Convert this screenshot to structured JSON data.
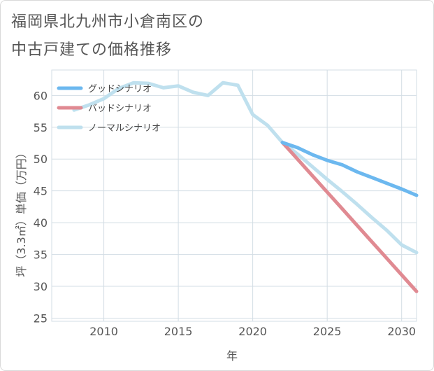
{
  "title_lines": [
    "福岡県北九州市小倉南区の",
    "中古戸建ての価格推移"
  ],
  "chart_data": {
    "type": "line",
    "title": "福岡県北九州市小倉南区の中古戸建ての価格推移",
    "xlabel": "年",
    "ylabel": "坪（3.3㎡）単価（万円）",
    "xlim": [
      2006.5,
      2031
    ],
    "ylim": [
      24.5,
      64
    ],
    "xticks": [
      2010,
      2015,
      2020,
      2025,
      2030
    ],
    "yticks": [
      25,
      30,
      35,
      40,
      45,
      50,
      55,
      60
    ],
    "grid": true,
    "legend_position": "top-left",
    "series": [
      {
        "name": "グッドシナリオ",
        "color": "#6cb8ef",
        "x": [
          2022,
          2023,
          2024,
          2025,
          2026,
          2027,
          2028,
          2029,
          2030,
          2031
        ],
        "y": [
          52.6,
          51.8,
          50.7,
          49.8,
          49.1,
          48.0,
          47.1,
          46.2,
          45.3,
          44.3
        ]
      },
      {
        "name": "バッドシナリオ",
        "color": "#e08a92",
        "x": [
          2022,
          2023,
          2024,
          2025,
          2026,
          2027,
          2028,
          2029,
          2030,
          2031
        ],
        "y": [
          52.6,
          50.0,
          47.4,
          44.8,
          42.2,
          39.6,
          37.0,
          34.4,
          31.8,
          29.2
        ]
      },
      {
        "name": "ノーマルシナリオ",
        "color": "#bfe0ee",
        "x": [
          2008,
          2009,
          2010,
          2011,
          2012,
          2013,
          2014,
          2015,
          2016,
          2017,
          2018,
          2019,
          2020,
          2021,
          2022,
          2023,
          2024,
          2025,
          2026,
          2027,
          2028,
          2029,
          2030,
          2031
        ],
        "y": [
          57.7,
          58.5,
          59.5,
          61.1,
          62.0,
          61.9,
          61.2,
          61.5,
          60.5,
          60.0,
          62.0,
          61.6,
          57.0,
          55.3,
          52.6,
          50.8,
          48.8,
          46.8,
          44.9,
          42.9,
          40.8,
          38.8,
          36.5,
          35.3
        ]
      }
    ]
  }
}
